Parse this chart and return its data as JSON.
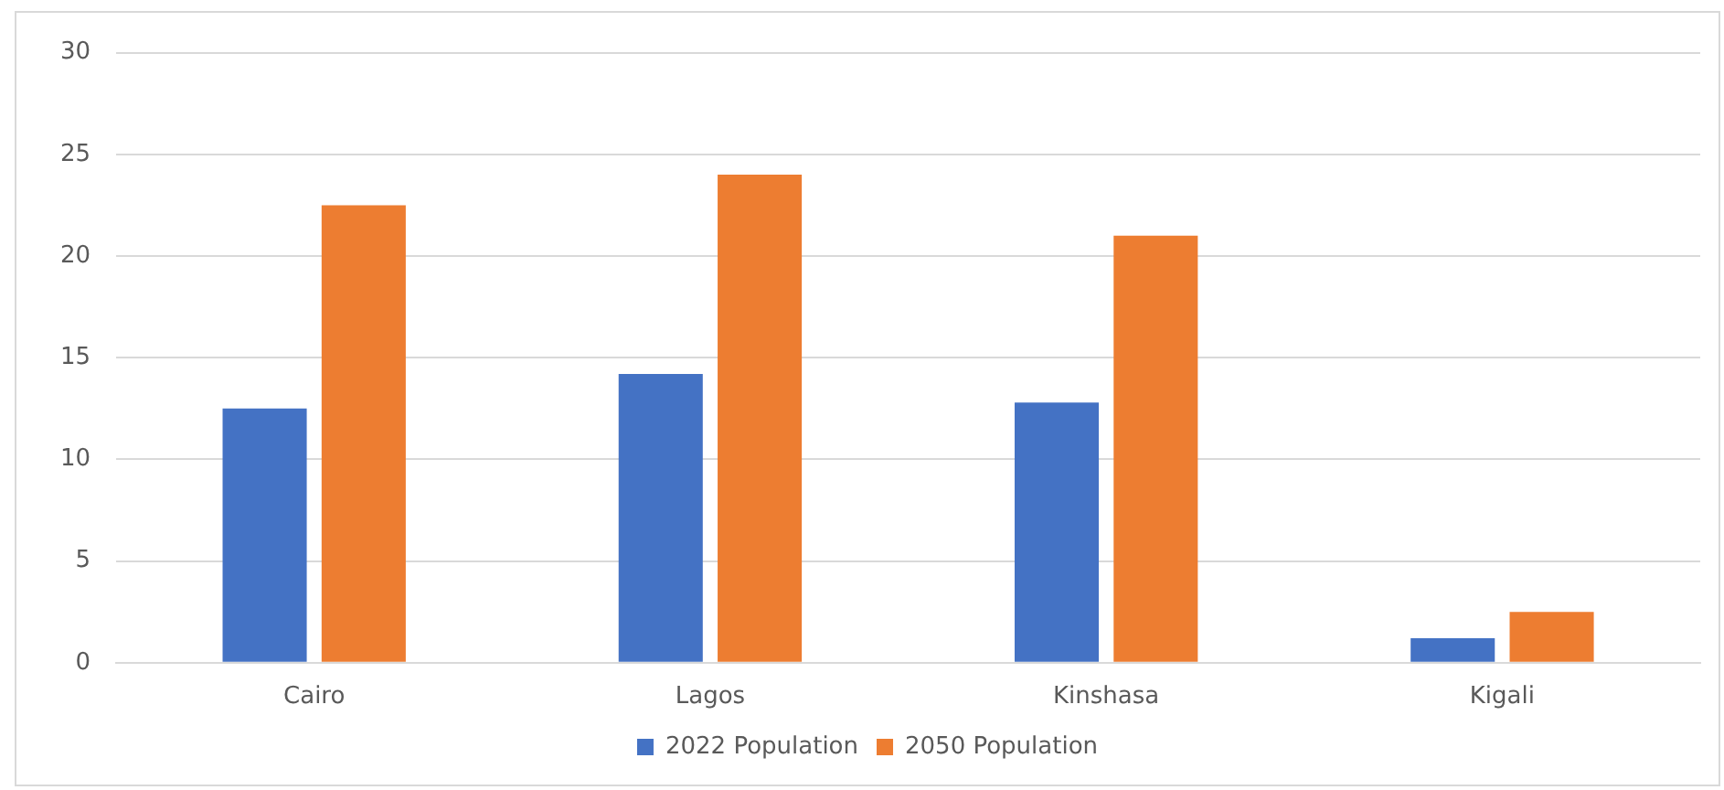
{
  "chart_data": {
    "type": "bar",
    "categories": [
      "Cairo",
      "Lagos",
      "Kinshasa",
      "Kigali"
    ],
    "series": [
      {
        "name": "2022 Population",
        "color": "#4472c4",
        "values": [
          12.5,
          14.2,
          12.8,
          1.2
        ]
      },
      {
        "name": "2050 Population",
        "color": "#ed7d31",
        "values": [
          22.5,
          24.0,
          21.0,
          2.5
        ]
      }
    ],
    "ylim": [
      0,
      30
    ],
    "yticks": [
      0,
      5,
      10,
      15,
      20,
      25,
      30
    ],
    "grid": "y",
    "legend": "bottom"
  }
}
